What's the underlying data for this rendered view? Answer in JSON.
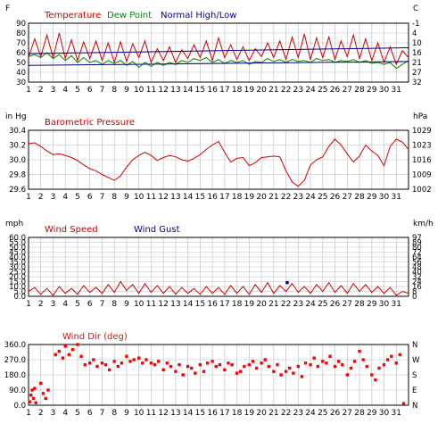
{
  "colors": {
    "temperature": "#cc0000",
    "dew_point": "#008800",
    "normal": "#000080",
    "pressure": "#cc0000",
    "wind_speed": "#cc0000",
    "wind_gust": "#000080",
    "wind_dir": "#ff0000",
    "grid": "#bbbbbb",
    "axis_text": "#000000"
  },
  "chart_data": [
    {
      "type": "line",
      "legend": [
        "Temperature",
        "Dew Point",
        "Normal High/Low"
      ],
      "left_unit": "F",
      "right_unit": "C",
      "ylim": [
        30,
        90
      ],
      "y_ticks": [
        30,
        40,
        50,
        60,
        70,
        80,
        90
      ],
      "right_ticks": [
        "32",
        "27",
        "21",
        "16",
        "10",
        "4",
        "-1"
      ],
      "x_ticks": [
        1,
        2,
        3,
        4,
        5,
        6,
        7,
        8,
        9,
        10,
        11,
        12,
        13,
        14,
        15,
        16,
        17,
        18,
        19,
        20,
        21,
        22,
        23,
        24,
        25,
        26,
        27,
        28,
        29,
        30,
        31
      ],
      "xlim": [
        1,
        32
      ],
      "grid": true,
      "series": [
        {
          "name": "Temperature",
          "key": "temp",
          "x": [
            1,
            1.5,
            2,
            2.5,
            3,
            3.5,
            4,
            4.5,
            5,
            5.5,
            6,
            6.5,
            7,
            7.5,
            8,
            8.5,
            9,
            9.5,
            10,
            10.5,
            11,
            11.5,
            12,
            12.5,
            13,
            13.5,
            14,
            14.5,
            15,
            15.5,
            16,
            16.5,
            17,
            17.5,
            18,
            18.5,
            19,
            19.5,
            20,
            20.5,
            21,
            21.5,
            22,
            22.5,
            23,
            23.5,
            24,
            24.5,
            25,
            25.5,
            26,
            26.5,
            27,
            27.5,
            28,
            28.5,
            29,
            29.5,
            30,
            30.5,
            31,
            31.5,
            32
          ],
          "values": [
            55,
            74,
            56,
            78,
            55,
            80,
            54,
            73,
            52,
            71,
            54,
            72,
            52,
            70,
            50,
            71,
            51,
            69,
            55,
            72,
            50,
            64,
            52,
            66,
            50,
            63,
            54,
            68,
            55,
            72,
            52,
            75,
            55,
            68,
            53,
            66,
            52,
            64,
            56,
            70,
            55,
            72,
            53,
            76,
            55,
            79,
            53,
            75,
            55,
            76,
            53,
            72,
            56,
            78,
            54,
            74,
            52,
            70,
            50,
            66,
            48,
            62,
            55
          ]
        },
        {
          "name": "Dew Point",
          "key": "dew",
          "x": [
            1,
            1.5,
            2,
            2.5,
            3,
            3.5,
            4,
            4.5,
            5,
            5.5,
            6,
            6.5,
            7,
            7.5,
            8,
            8.5,
            9,
            9.5,
            10,
            10.5,
            11,
            11.5,
            12,
            12.5,
            13,
            13.5,
            14,
            14.5,
            15,
            15.5,
            16,
            16.5,
            17,
            17.5,
            18,
            18.5,
            19,
            19.5,
            20,
            20.5,
            21,
            21.5,
            22,
            22.5,
            23,
            23.5,
            24,
            24.5,
            25,
            25.5,
            26,
            26.5,
            27,
            27.5,
            28,
            28.5,
            29,
            29.5,
            30,
            30.5,
            31,
            31.5,
            32
          ],
          "values": [
            56,
            58,
            55,
            60,
            54,
            58,
            52,
            57,
            50,
            55,
            50,
            52,
            48,
            52,
            49,
            52,
            47,
            51,
            45,
            50,
            46,
            50,
            47,
            50,
            48,
            52,
            50,
            54,
            52,
            55,
            50,
            53,
            49,
            52,
            50,
            52,
            48,
            51,
            50,
            54,
            51,
            53,
            50,
            53,
            51,
            52,
            50,
            54,
            52,
            53,
            50,
            52,
            51,
            53,
            50,
            52,
            49,
            50,
            48,
            50,
            44,
            48,
            52
          ]
        },
        {
          "name": "Normal High/Low",
          "key": "normal_high",
          "x": [
            1,
            32
          ],
          "values": [
            59,
            65
          ]
        },
        {
          "name": "Normal High/Low",
          "key": "normal_low",
          "x": [
            1,
            32
          ],
          "values": [
            47,
            51
          ]
        }
      ]
    },
    {
      "type": "line",
      "title": "Barometric Pressure",
      "left_unit": "in Hg",
      "right_unit": "hPa",
      "ylim": [
        29.6,
        30.4
      ],
      "y_ticks": [
        29.6,
        29.8,
        30.0,
        30.2,
        30.4
      ],
      "y_tick_labels": [
        "29.6",
        "29.8",
        "30.0",
        "30.2",
        "30.4"
      ],
      "right_ticks": [
        "1002",
        "1009",
        "1016",
        "1023",
        "1029"
      ],
      "x_ticks": [
        1,
        2,
        3,
        4,
        5,
        6,
        7,
        8,
        9,
        10,
        11,
        12,
        13,
        14,
        15,
        16,
        17,
        18,
        19,
        20,
        21,
        22,
        23,
        24,
        25,
        26,
        27,
        28,
        29,
        30,
        31
      ],
      "xlim": [
        1,
        32
      ],
      "grid": true,
      "series": [
        {
          "name": "Barometric Pressure",
          "key": "pressure",
          "x": [
            1,
            1.5,
            2,
            2.5,
            3,
            3.5,
            4,
            4.5,
            5,
            5.5,
            6,
            6.5,
            7,
            7.5,
            8,
            8.5,
            9,
            9.5,
            10,
            10.5,
            11,
            11.5,
            12,
            12.5,
            13,
            13.5,
            14,
            14.5,
            15,
            15.5,
            16,
            16.5,
            17,
            17.5,
            18,
            18.5,
            19,
            19.5,
            20,
            20.5,
            21,
            21.5,
            22,
            22.5,
            23,
            23.5,
            24,
            24.5,
            25,
            25.5,
            26,
            26.5,
            27,
            27.5,
            28,
            28.5,
            29,
            29.5,
            30,
            30.5,
            31,
            31.5,
            32
          ],
          "values": [
            30.22,
            30.23,
            30.18,
            30.12,
            30.07,
            30.08,
            30.06,
            30.03,
            29.99,
            29.93,
            29.88,
            29.85,
            29.8,
            29.76,
            29.72,
            29.78,
            29.9,
            30.0,
            30.06,
            30.1,
            30.06,
            29.99,
            30.03,
            30.06,
            30.04,
            30.0,
            29.98,
            30.02,
            30.07,
            30.14,
            30.2,
            30.25,
            30.1,
            29.97,
            30.02,
            30.03,
            29.92,
            29.96,
            30.03,
            30.04,
            30.05,
            30.04,
            29.85,
            29.7,
            29.64,
            29.72,
            29.93,
            30.0,
            30.04,
            30.18,
            30.28,
            30.2,
            30.08,
            29.97,
            30.05,
            30.2,
            30.12,
            30.06,
            29.92,
            30.18,
            30.28,
            30.24,
            30.14
          ]
        }
      ]
    },
    {
      "type": "line",
      "legend": [
        "Wind Speed",
        "Wind Gust"
      ],
      "left_unit": "mph",
      "right_unit": "km/h",
      "ylim": [
        0,
        60
      ],
      "y_ticks": [
        0,
        5,
        10,
        15,
        20,
        25,
        30,
        35,
        40,
        45,
        50,
        55,
        60
      ],
      "y_tick_labels": [
        "0.0",
        "5.0",
        "10.0",
        "15.0",
        "20.0",
        "25.0",
        "30.0",
        "35.0",
        "40.0",
        "45.0",
        "50.0",
        "55.0",
        "60.0"
      ],
      "right_ticks": [
        "0",
        "8",
        "16",
        "24",
        "32",
        "40",
        "48",
        "56",
        "64",
        "72",
        "80",
        "89",
        "97"
      ],
      "x_ticks": [
        1,
        2,
        3,
        4,
        5,
        6,
        7,
        8,
        9,
        10,
        11,
        12,
        13,
        14,
        15,
        16,
        17,
        18,
        19,
        20,
        21,
        22,
        23,
        24,
        25,
        26,
        27,
        28,
        29,
        30,
        31
      ],
      "xlim": [
        1,
        32
      ],
      "grid": true,
      "series": [
        {
          "name": "Wind Speed",
          "key": "wind",
          "x": [
            1,
            1.5,
            2,
            2.5,
            3,
            3.5,
            4,
            4.5,
            5,
            5.5,
            6,
            6.5,
            7,
            7.5,
            8,
            8.5,
            9,
            9.5,
            10,
            10.5,
            11,
            11.5,
            12,
            12.5,
            13,
            13.5,
            14,
            14.5,
            15,
            15.5,
            16,
            16.5,
            17,
            17.5,
            18,
            18.5,
            19,
            19.5,
            20,
            20.5,
            21,
            21.5,
            22,
            22.5,
            23,
            23.5,
            24,
            24.5,
            25,
            25.5,
            26,
            26.5,
            27,
            27.5,
            28,
            28.5,
            29,
            29.5,
            30,
            30.5,
            31,
            31.5,
            32
          ],
          "values": [
            5,
            9,
            2,
            8,
            1,
            10,
            3,
            8,
            2,
            11,
            4,
            9,
            3,
            12,
            4,
            15,
            6,
            12,
            3,
            13,
            4,
            11,
            3,
            10,
            2,
            9,
            3,
            8,
            2,
            10,
            3,
            9,
            2,
            11,
            3,
            10,
            2,
            12,
            4,
            14,
            3,
            11,
            5,
            13,
            4,
            10,
            3,
            12,
            5,
            14,
            4,
            11,
            3,
            13,
            5,
            12,
            4,
            10,
            3,
            9,
            1,
            5,
            3
          ]
        },
        {
          "name": "Wind Gust",
          "key": "gust",
          "x": [
            22.1
          ],
          "values": [
            14
          ]
        }
      ]
    },
    {
      "type": "scatter",
      "title": "Wind Dir (deg)",
      "ylim": [
        0,
        360
      ],
      "y_ticks": [
        0,
        90,
        180,
        270,
        360
      ],
      "y_tick_labels": [
        "0.0",
        "90.0",
        "180.0",
        "270.0",
        "360.0"
      ],
      "right_ticks": [
        "N",
        "E",
        "S",
        "W",
        "N"
      ],
      "x_ticks": [
        1,
        2,
        3,
        4,
        5,
        6,
        7,
        8,
        9,
        10,
        11,
        12,
        13,
        14,
        15,
        16,
        17,
        18,
        19,
        20,
        21,
        22,
        23,
        24,
        25,
        26,
        27,
        28,
        29,
        30,
        31
      ],
      "xlim": [
        1,
        32
      ],
      "grid": true,
      "series": [
        {
          "name": "Wind Dir (deg)",
          "key": "dir",
          "x": [
            1.1,
            1.2,
            1.3,
            1.4,
            1.5,
            1.6,
            2.0,
            2.2,
            2.4,
            2.6,
            3.2,
            3.5,
            3.8,
            4.0,
            4.3,
            4.6,
            5.0,
            5.3,
            5.6,
            6.0,
            6.3,
            6.6,
            7.0,
            7.3,
            7.6,
            8.0,
            8.3,
            8.6,
            9.0,
            9.3,
            9.6,
            10.0,
            10.3,
            10.6,
            11.0,
            11.3,
            11.6,
            12.0,
            12.3,
            12.6,
            13.0,
            13.3,
            13.6,
            14.0,
            14.3,
            14.6,
            15.0,
            15.3,
            15.6,
            16.0,
            16.3,
            16.6,
            17.0,
            17.3,
            17.6,
            18.0,
            18.3,
            18.6,
            19.0,
            19.3,
            19.6,
            20.0,
            20.3,
            20.6,
            21.0,
            21.3,
            21.6,
            22.0,
            22.3,
            22.6,
            23.0,
            23.3,
            23.6,
            24.0,
            24.3,
            24.6,
            25.0,
            25.3,
            25.6,
            26.0,
            26.3,
            26.6,
            27.0,
            27.3,
            27.6,
            28.0,
            28.3,
            28.6,
            29.0,
            29.3,
            29.6,
            30.0,
            30.3,
            30.6,
            31.0,
            31.3,
            31.6
          ],
          "values": [
            20,
            60,
            90,
            40,
            100,
            15,
            130,
            70,
            40,
            90,
            300,
            320,
            280,
            350,
            300,
            330,
            360,
            290,
            240,
            250,
            270,
            230,
            250,
            240,
            210,
            260,
            230,
            250,
            290,
            260,
            270,
            280,
            250,
            270,
            250,
            240,
            260,
            210,
            250,
            230,
            200,
            240,
            180,
            230,
            220,
            190,
            240,
            200,
            250,
            260,
            230,
            240,
            210,
            250,
            240,
            190,
            200,
            230,
            240,
            260,
            220,
            250,
            270,
            230,
            200,
            240,
            180,
            200,
            220,
            190,
            230,
            170,
            250,
            240,
            280,
            230,
            260,
            250,
            290,
            230,
            260,
            240,
            180,
            220,
            260,
            320,
            270,
            230,
            180,
            150,
            220,
            240,
            270,
            290,
            250,
            300,
            10
          ]
        }
      ]
    }
  ]
}
